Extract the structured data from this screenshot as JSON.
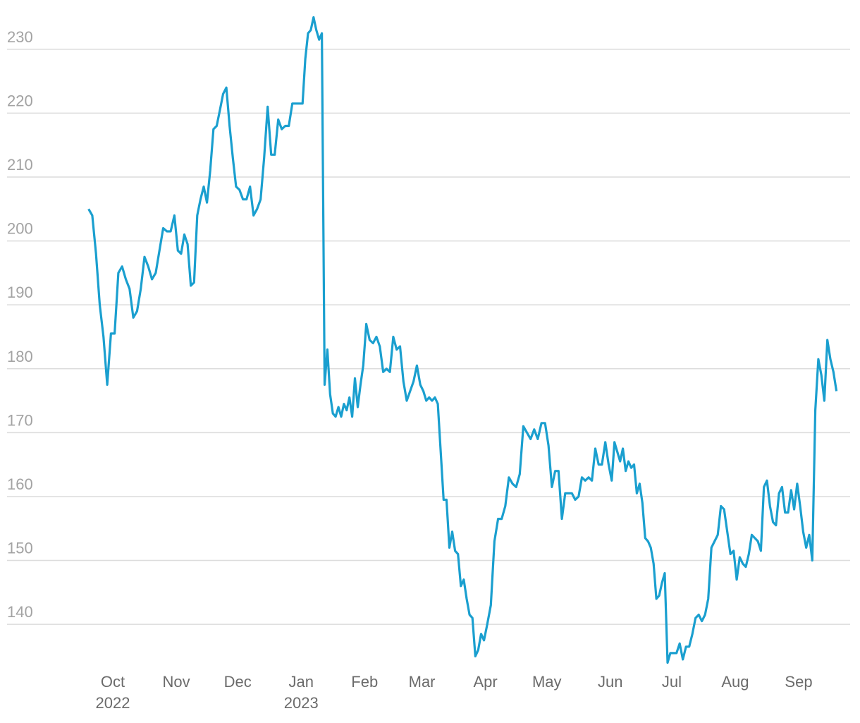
{
  "chart_data": {
    "type": "line",
    "x": [
      "2022-09",
      "2022-09",
      "2022-09",
      "2022-09",
      "2022-09",
      "2022-09",
      "2022-09",
      "2022-10",
      "2022-10",
      "2022-10",
      "2022-10",
      "2022-10",
      "2022-10",
      "2022-10",
      "2022-10",
      "2022-10",
      "2022-10",
      "2022-10",
      "2022-10",
      "2022-10",
      "2022-10",
      "2022-10",
      "2022-10",
      "2022-10",
      "2022-11",
      "2022-11",
      "2022-11",
      "2022-11",
      "2022-11",
      "2022-11",
      "2022-11",
      "2022-11",
      "2022-11",
      "2022-11",
      "2022-11",
      "2022-11",
      "2022-11",
      "2022-11",
      "2022-11",
      "2022-11",
      "2022-11",
      "2022-11",
      "2022-11",
      "2022-12",
      "2022-12",
      "2022-12",
      "2022-12",
      "2022-12",
      "2022-12",
      "2022-12",
      "2022-12",
      "2022-12",
      "2022-12",
      "2022-12",
      "2022-12",
      "2022-12",
      "2022-12",
      "2022-12",
      "2022-12",
      "2022-12",
      "2022-12",
      "2023-01",
      "2023-01",
      "2023-01",
      "2023-01",
      "2023-01",
      "2023-01",
      "2023-01",
      "2023-01",
      "2023-01",
      "2023-01",
      "2023-01",
      "2023-01",
      "2023-01",
      "2023-01",
      "2023-01",
      "2023-01",
      "2023-01",
      "2023-01",
      "2023-01",
      "2023-01",
      "2023-01",
      "2023-01",
      "2023-01",
      "2023-02",
      "2023-02",
      "2023-02",
      "2023-02",
      "2023-02",
      "2023-02",
      "2023-02",
      "2023-02",
      "2023-02",
      "2023-02",
      "2023-02",
      "2023-02",
      "2023-02",
      "2023-02",
      "2023-02",
      "2023-02",
      "2023-02",
      "2023-03",
      "2023-03",
      "2023-03",
      "2023-03",
      "2023-03",
      "2023-03",
      "2023-03",
      "2023-03",
      "2023-03",
      "2023-03",
      "2023-03",
      "2023-03",
      "2023-03",
      "2023-03",
      "2023-03",
      "2023-03",
      "2023-03",
      "2023-03",
      "2023-03",
      "2023-03",
      "2023-03",
      "2023-03",
      "2023-04",
      "2023-04",
      "2023-04",
      "2023-04",
      "2023-04",
      "2023-04",
      "2023-04",
      "2023-04",
      "2023-04",
      "2023-04",
      "2023-04",
      "2023-04",
      "2023-04",
      "2023-04",
      "2023-04",
      "2023-04",
      "2023-04",
      "2023-05",
      "2023-05",
      "2023-05",
      "2023-05",
      "2023-05",
      "2023-05",
      "2023-05",
      "2023-05",
      "2023-05",
      "2023-05",
      "2023-05",
      "2023-05",
      "2023-05",
      "2023-05",
      "2023-05",
      "2023-05",
      "2023-05",
      "2023-05",
      "2023-05",
      "2023-06",
      "2023-06",
      "2023-06",
      "2023-06",
      "2023-06",
      "2023-06",
      "2023-06",
      "2023-06",
      "2023-06",
      "2023-06",
      "2023-06",
      "2023-06",
      "2023-06",
      "2023-06",
      "2023-06",
      "2023-06",
      "2023-06",
      "2023-06",
      "2023-06",
      "2023-06",
      "2023-06",
      "2023-06",
      "2023-07",
      "2023-07",
      "2023-07",
      "2023-07",
      "2023-07",
      "2023-07",
      "2023-07",
      "2023-07",
      "2023-07",
      "2023-07",
      "2023-07",
      "2023-07",
      "2023-07",
      "2023-07",
      "2023-07",
      "2023-07",
      "2023-07",
      "2023-07",
      "2023-07",
      "2023-07",
      "2023-08",
      "2023-08",
      "2023-08",
      "2023-08",
      "2023-08",
      "2023-08",
      "2023-08",
      "2023-08",
      "2023-08",
      "2023-08",
      "2023-08",
      "2023-08",
      "2023-08",
      "2023-08",
      "2023-08",
      "2023-08",
      "2023-08",
      "2023-08",
      "2023-08",
      "2023-08",
      "2023-08",
      "2023-09",
      "2023-09",
      "2023-09",
      "2023-09",
      "2023-09",
      "2023-09",
      "2023-09",
      "2023-09",
      "2023-09",
      "2023-09",
      "2023-09",
      "2023-09",
      "2023-09"
    ],
    "values": [
      205,
      204,
      198,
      190,
      185,
      177.5,
      185.5,
      185.5,
      195,
      196,
      194,
      192.5,
      188,
      189,
      192.5,
      197.5,
      196,
      194,
      195,
      198.5,
      202,
      201.5,
      201.5,
      204,
      198.5,
      198,
      201,
      199.5,
      193,
      193.5,
      204,
      206.5,
      208.5,
      206,
      211,
      217.5,
      218,
      220.5,
      223,
      224,
      218,
      213,
      208.5,
      208,
      206.5,
      206.5,
      208.5,
      204,
      205,
      206.5,
      213,
      221,
      213.5,
      213.5,
      219,
      217.5,
      218,
      218,
      221.5,
      221.5,
      221.5,
      221.5,
      228.5,
      232.5,
      233,
      235,
      233,
      231.5,
      232.5,
      177.5,
      183,
      176,
      173,
      172.5,
      174,
      172.5,
      174.5,
      173.5,
      175.5,
      172.5,
      178.5,
      174,
      177.5,
      180.5,
      187,
      184.5,
      184,
      185,
      183.5,
      179.5,
      180,
      179.5,
      185,
      183,
      183.5,
      178,
      175,
      176.5,
      178,
      180.5,
      177.5,
      176.5,
      175,
      175.5,
      175,
      175.5,
      174.5,
      167,
      159.5,
      159.5,
      152,
      154.5,
      151.5,
      151,
      146,
      147,
      144,
      141.5,
      141,
      135,
      136,
      138.5,
      137.5,
      140,
      143,
      153,
      156.5,
      156.5,
      158.5,
      163,
      162,
      161.5,
      163.5,
      171,
      170,
      169,
      170.5,
      169,
      171.5,
      171.5,
      168,
      161.5,
      164,
      164,
      156.5,
      160.5,
      160.5,
      160.5,
      159.5,
      160,
      163,
      162.5,
      163,
      162.5,
      167.5,
      165,
      165,
      168.5,
      165,
      162.5,
      168.5,
      167,
      165.5,
      167.5,
      164,
      165.5,
      164.5,
      165,
      160.5,
      162,
      159,
      153.5,
      153,
      152,
      149.5,
      144,
      144.5,
      146.5,
      148,
      134,
      135.5,
      135.5,
      135.5,
      137,
      134.5,
      136.5,
      136.5,
      138.5,
      141,
      141.5,
      140.5,
      141.5,
      144,
      152,
      153,
      154,
      158.5,
      158,
      154.5,
      151,
      151.5,
      147,
      150.5,
      149.5,
      149,
      151,
      154,
      153.5,
      153,
      151.5,
      161.5,
      162.5,
      158.5,
      156,
      155.5,
      160.5,
      161.5,
      157.5,
      157.5,
      161,
      158,
      162,
      158.5,
      154.5,
      152,
      154,
      150,
      173.5,
      181.5,
      179,
      175,
      184.5,
      181.5,
      179.5,
      176.5
    ],
    "color": "#1a9fcf",
    "ylim": [
      133.5,
      235.5
    ],
    "yticks": [
      140,
      150,
      160,
      170,
      180,
      190,
      200,
      210,
      220,
      230
    ],
    "xticks": [
      {
        "value": "2022-10",
        "label": [
          "Oct",
          "2022"
        ]
      },
      {
        "value": "2022-11",
        "label": "Nov"
      },
      {
        "value": "2022-12",
        "label": "Dec"
      },
      {
        "value": "2023-01",
        "label": [
          "Jan",
          "2023"
        ]
      },
      {
        "value": "2023-02",
        "label": "Feb"
      },
      {
        "value": "2023-03",
        "label": "Mar"
      },
      {
        "value": "2023-04",
        "label": "Apr"
      },
      {
        "value": "2023-05",
        "label": "May"
      },
      {
        "value": "2023-06",
        "label": "Jun"
      },
      {
        "value": "2023-07",
        "label": "Jul"
      },
      {
        "value": "2023-08",
        "label": "Aug"
      },
      {
        "value": "2023-09",
        "label": "Sep"
      }
    ],
    "grid": true
  }
}
